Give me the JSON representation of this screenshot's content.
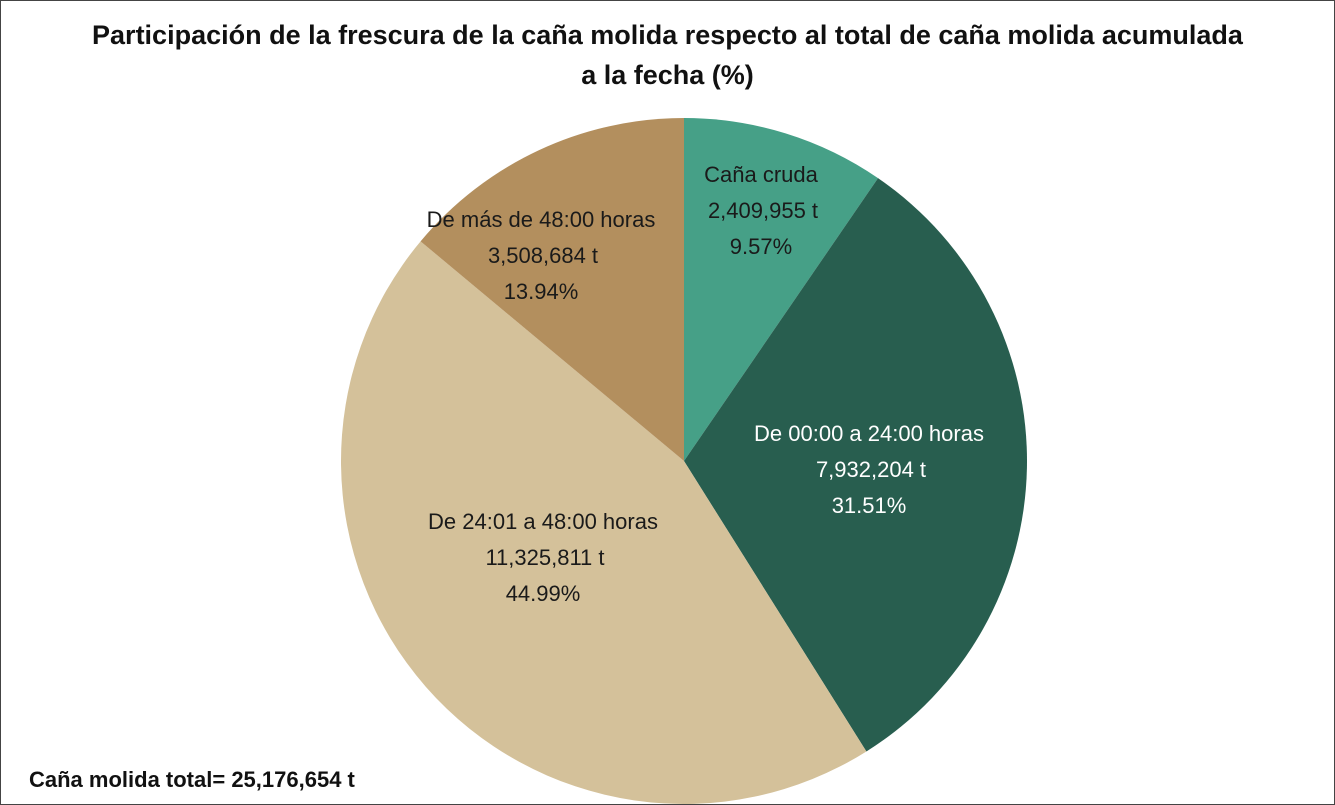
{
  "chart_data": {
    "type": "pie",
    "title": "Participación de la frescura de la caña molida respecto al total de caña molida acumulada a la fecha (%)",
    "categories": [
      "Caña cruda",
      "De 00:00 a 24:00 horas",
      "De 24:01 a 48:00 horas",
      "De más de 48:00 horas"
    ],
    "values": [
      9.57,
      31.51,
      44.99,
      13.94
    ],
    "value_labels": [
      "9.57%",
      "31.51%",
      "44.99%",
      "13.94%"
    ],
    "tonnes": [
      2409955,
      7932204,
      11325811,
      3508684
    ],
    "tonnes_labels": [
      "2,409,955 t",
      "7,932,204 t",
      "11,325,811 t",
      "3,508,684 t"
    ],
    "colors": [
      "#46a087",
      "#285e4f",
      "#d4c19a",
      "#b38f5e"
    ],
    "label_colors": [
      "#1a1a1a",
      "#ffffff",
      "#1a1a1a",
      "#1a1a1a"
    ],
    "annotation": "Caña molida total= 25,176,654 t"
  }
}
